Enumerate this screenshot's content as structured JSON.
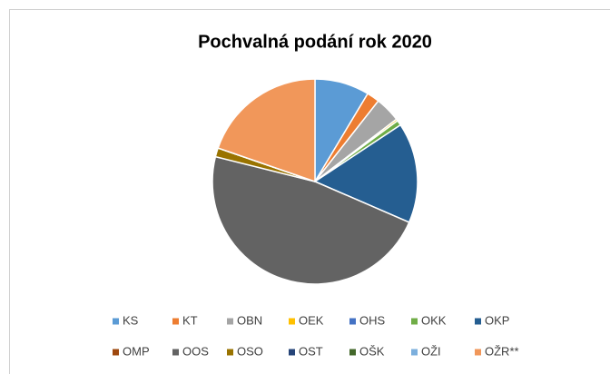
{
  "chart_data": {
    "type": "pie",
    "title": "Pochvalná podání rok 2020",
    "categories": [
      "KS",
      "KT",
      "OBN",
      "OEK",
      "OHS",
      "OKK",
      "OKP",
      "OMP",
      "OOS",
      "OSO",
      "OST",
      "OŠK",
      "OŽI",
      "OŽR**"
    ],
    "values": [
      8.6,
      2,
      4,
      0.3,
      0,
      0.8,
      15.8,
      0,
      47.4,
      1.4,
      0,
      0,
      0,
      19.7
    ],
    "colors": [
      "#5b9bd5",
      "#ed7d31",
      "#a5a5a5",
      "#ffc000",
      "#4472c4",
      "#70ad47",
      "#255e91",
      "#9e480e",
      "#636363",
      "#997300",
      "#264478",
      "#43682b",
      "#7cafdd",
      "#f1975a"
    ],
    "legend": "bottom"
  }
}
